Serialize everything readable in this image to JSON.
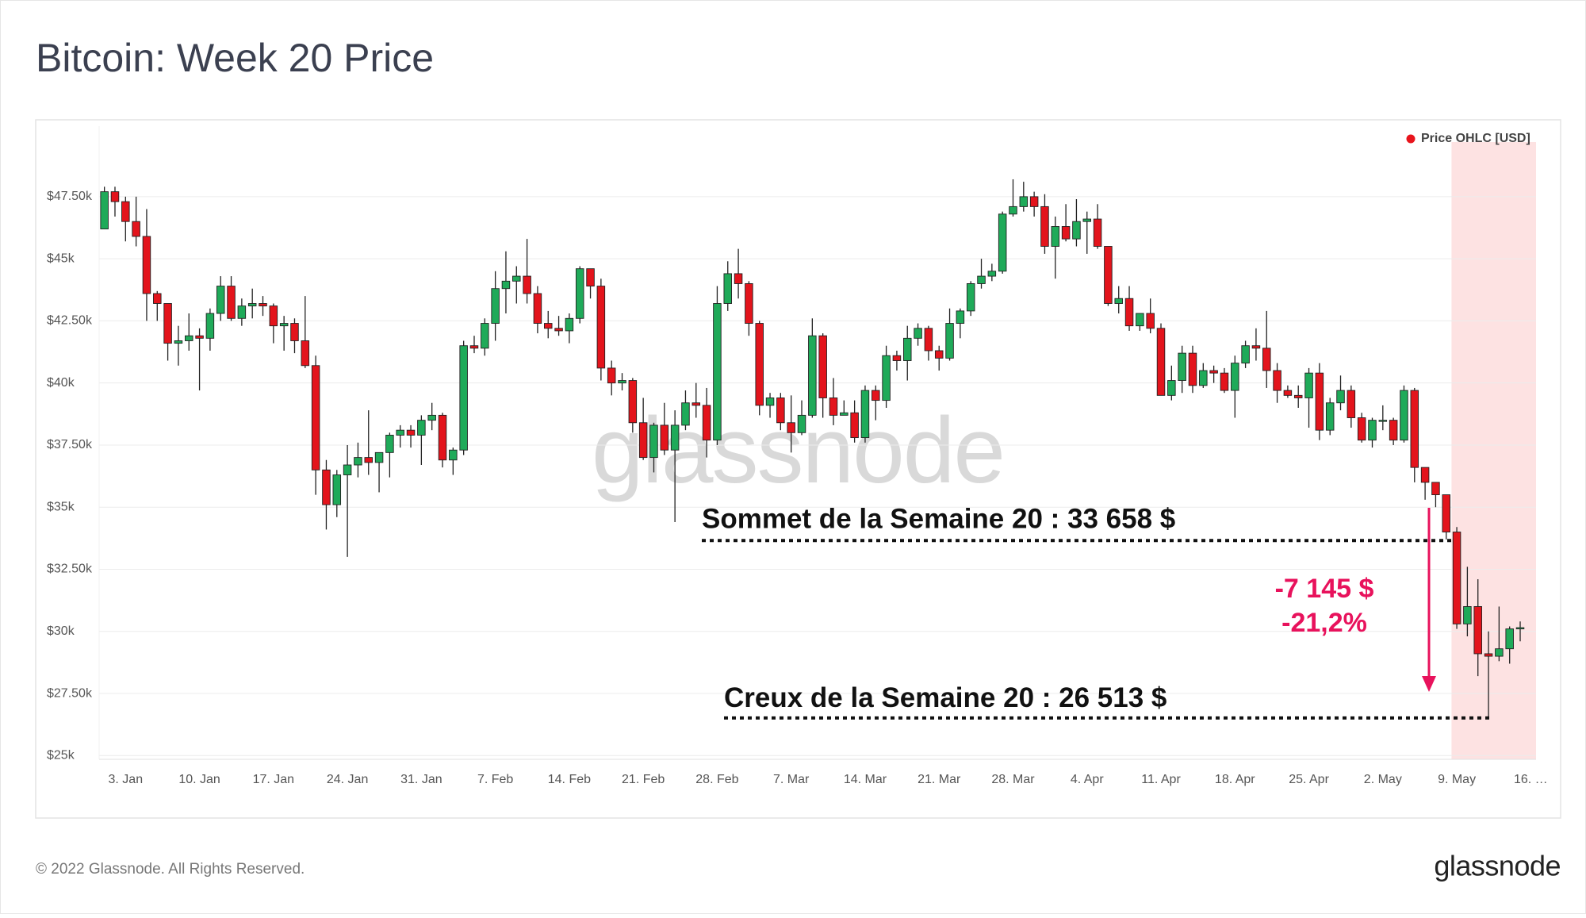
{
  "chart_data": {
    "type": "candlestick",
    "title": "Bitcoin: Week 20 Price",
    "watermark": "glassnode",
    "legend": {
      "name": "Price OHLC [USD]",
      "color": "#e8141c",
      "position": "top-right"
    },
    "up_color": "#1faa59",
    "down_color": "#e3141c",
    "grid": true,
    "highlight": {
      "from": 128,
      "color": "#fde2e2"
    },
    "categories": [
      null,
      null,
      "3. Jan",
      null,
      null,
      null,
      null,
      null,
      null,
      "10. Jan",
      null,
      null,
      null,
      null,
      null,
      null,
      "17. Jan",
      null,
      null,
      null,
      null,
      null,
      null,
      "24. Jan",
      null,
      null,
      null,
      null,
      null,
      null,
      "31. Jan",
      null,
      null,
      null,
      null,
      null,
      null,
      "7. Feb",
      null,
      null,
      null,
      null,
      null,
      null,
      "14. Feb",
      null,
      null,
      null,
      null,
      null,
      null,
      "21. Feb",
      null,
      null,
      null,
      null,
      null,
      null,
      "28. Feb",
      null,
      null,
      null,
      null,
      null,
      null,
      "7. Mar",
      null,
      null,
      null,
      null,
      null,
      null,
      "14. Mar",
      null,
      null,
      null,
      null,
      null,
      null,
      "21. Mar",
      null,
      null,
      null,
      null,
      null,
      null,
      "28. Mar",
      null,
      null,
      null,
      null,
      null,
      null,
      "4. Apr",
      null,
      null,
      null,
      null,
      null,
      null,
      "11. Apr",
      null,
      null,
      null,
      null,
      null,
      null,
      "18. Apr",
      null,
      null,
      null,
      null,
      null,
      null,
      "25. Apr",
      null,
      null,
      null,
      null,
      null,
      null,
      "2. May",
      null,
      null,
      null,
      null,
      null,
      null,
      "9. May",
      null,
      null,
      null,
      null,
      null,
      null,
      "16. …"
    ],
    "open": [
      46200,
      47700,
      47300,
      46500,
      45900,
      43600,
      43200,
      41600,
      41700,
      41900,
      41800,
      42800,
      43900,
      42600,
      43100,
      43200,
      43100,
      42300,
      42400,
      41700,
      40700,
      36500,
      35100,
      36300,
      36700,
      37000,
      36800,
      37200,
      37900,
      38100,
      37900,
      38500,
      38700,
      36900,
      37300,
      41500,
      41400,
      42400,
      43800,
      44100,
      44300,
      43600,
      42400,
      42200,
      42100,
      42600,
      44600,
      43900,
      40600,
      40000,
      40100,
      38400,
      37000,
      38300,
      37300,
      38300,
      39200,
      39100,
      37700,
      43200,
      44400,
      44000,
      42400,
      39100,
      39400,
      38400,
      38000,
      38700,
      41900,
      39400,
      38700,
      38800,
      37800,
      39700,
      39300,
      41100,
      40900,
      41800,
      42200,
      41300,
      41000,
      42400,
      42900,
      44000,
      44300,
      44500,
      46800,
      47100,
      47500,
      47100,
      45500,
      46300,
      45800,
      46500,
      46600,
      45500,
      43200,
      43400,
      42300,
      42800,
      42200,
      39500,
      40100,
      41200,
      39900,
      40500,
      40400,
      39700,
      40800,
      41500,
      41400,
      40500,
      39700,
      39500,
      39400,
      40400,
      38100,
      39200,
      39700,
      38600,
      37700,
      38500,
      38500,
      37700,
      39700,
      36600,
      36000,
      35500,
      34000,
      30300,
      31000,
      29100,
      29000,
      29300,
      30100,
      null
    ],
    "high": [
      47900,
      47900,
      47500,
      47500,
      47000,
      43700,
      43200,
      42300,
      42800,
      42200,
      43000,
      44300,
      44300,
      43400,
      43800,
      43500,
      43200,
      42700,
      42600,
      43500,
      41100,
      36900,
      36500,
      37500,
      37600,
      38900,
      37200,
      38000,
      38300,
      38300,
      38700,
      39200,
      38800,
      37400,
      41700,
      41900,
      42600,
      44500,
      45300,
      44700,
      45800,
      43900,
      42900,
      42700,
      42800,
      44700,
      44600,
      44200,
      40900,
      40400,
      40200,
      39400,
      38400,
      39200,
      38900,
      39700,
      40000,
      39800,
      43900,
      44900,
      45400,
      44100,
      42500,
      39600,
      39600,
      39500,
      39300,
      42600,
      42000,
      40200,
      39300,
      39300,
      39900,
      39900,
      41500,
      41300,
      42300,
      42400,
      42300,
      41500,
      43000,
      43000,
      44100,
      45000,
      44800,
      46900,
      48200,
      48100,
      47700,
      47600,
      46700,
      47200,
      47400,
      46900,
      47200,
      45500,
      43900,
      43900,
      42800,
      43400,
      42400,
      40700,
      41500,
      41500,
      40800,
      40700,
      40600,
      41100,
      41700,
      42200,
      42900,
      40800,
      39900,
      39900,
      40600,
      40800,
      39400,
      40300,
      39900,
      38800,
      38600,
      39100,
      38600,
      39900,
      39800,
      36600,
      36000,
      35500,
      34200,
      32600,
      32100,
      30000,
      31000,
      30200,
      30400,
      null
    ],
    "low": [
      46200,
      46700,
      45700,
      45500,
      42500,
      42500,
      40900,
      40700,
      41300,
      39700,
      41300,
      42500,
      42500,
      42300,
      42600,
      42700,
      41600,
      41300,
      41200,
      40600,
      35500,
      34100,
      34600,
      33000,
      36200,
      36300,
      35600,
      36200,
      37400,
      37400,
      36700,
      38100,
      36600,
      36300,
      37100,
      41200,
      41100,
      41700,
      42800,
      43200,
      43200,
      42000,
      41800,
      41900,
      41600,
      42400,
      43400,
      40100,
      39500,
      39700,
      38000,
      36900,
      36400,
      37100,
      34400,
      38100,
      38600,
      37000,
      37500,
      42900,
      43400,
      41900,
      38700,
      38600,
      38100,
      37200,
      37900,
      38600,
      38600,
      38300,
      38700,
      37600,
      37600,
      38500,
      39000,
      40500,
      40100,
      41500,
      40900,
      40500,
      40900,
      41800,
      42700,
      43800,
      44100,
      44400,
      46700,
      46900,
      46700,
      45200,
      44200,
      45700,
      45500,
      45200,
      45400,
      43100,
      42800,
      42100,
      42100,
      42000,
      39500,
      39300,
      39600,
      39600,
      39800,
      40000,
      39600,
      38600,
      40600,
      40900,
      39800,
      39200,
      39400,
      39000,
      38200,
      37700,
      37900,
      38900,
      38200,
      37600,
      37400,
      38100,
      37500,
      37600,
      36000,
      35300,
      35000,
      33700,
      30100,
      29800,
      28200,
      26513,
      28800,
      28700,
      29600,
      null
    ],
    "close": [
      47700,
      47300,
      46500,
      45900,
      43600,
      43200,
      41600,
      41700,
      41900,
      41800,
      42800,
      43900,
      42600,
      43100,
      43200,
      43100,
      42300,
      42400,
      41700,
      40700,
      36500,
      35100,
      36300,
      36700,
      37000,
      36800,
      37200,
      37900,
      38100,
      37900,
      38500,
      38700,
      36900,
      37300,
      41500,
      41400,
      42400,
      43800,
      44100,
      44300,
      43600,
      42400,
      42200,
      42100,
      42600,
      44600,
      43900,
      40600,
      40000,
      40100,
      38400,
      37000,
      38300,
      37300,
      38300,
      39200,
      39100,
      37700,
      43200,
      44400,
      44000,
      42400,
      39100,
      39400,
      38400,
      38000,
      38700,
      41900,
      39400,
      38700,
      38800,
      37800,
      39700,
      39300,
      41100,
      40900,
      41800,
      42200,
      41300,
      41000,
      42400,
      42900,
      44000,
      44300,
      44500,
      46800,
      47100,
      47500,
      47100,
      45500,
      46300,
      45800,
      46500,
      46600,
      45500,
      43200,
      43400,
      42300,
      42800,
      42200,
      39500,
      40100,
      41200,
      39900,
      40500,
      40400,
      39700,
      40800,
      41500,
      41400,
      40500,
      39700,
      39500,
      39400,
      40400,
      38100,
      39200,
      39700,
      38600,
      37700,
      38500,
      38500,
      37700,
      39700,
      36600,
      36000,
      35500,
      34000,
      30300,
      31000,
      29100,
      29000,
      29300,
      30100,
      30150,
      null
    ],
    "ylim": [
      24850,
      49700
    ],
    "yticks": [
      {
        "value": 25000,
        "label": "$25k"
      },
      {
        "value": 27500,
        "label": "$27.50k"
      },
      {
        "value": 30000,
        "label": "$30k"
      },
      {
        "value": 32500,
        "label": "$32.50k"
      },
      {
        "value": 35000,
        "label": "$35k"
      },
      {
        "value": 37500,
        "label": "$37.50k"
      },
      {
        "value": 40000,
        "label": "$40k"
      },
      {
        "value": 42500,
        "label": "$42.50k"
      },
      {
        "value": 45000,
        "label": "$45k"
      },
      {
        "value": 47500,
        "label": "$47.50k"
      }
    ],
    "annotations": [
      {
        "text": "Sommet de la Semaine 20 : 33 658 $",
        "value": 33658
      },
      {
        "text": "Creux de la Semaine 20 : 26 513 $",
        "value": 26513
      },
      {
        "text": "-7 145 $"
      },
      {
        "text": "-21,2%"
      }
    ],
    "annotation_color": "#e8125c"
  },
  "footer": {
    "copyright": "© 2022 Glassnode. All Rights Reserved.",
    "logo": "glassnode"
  }
}
